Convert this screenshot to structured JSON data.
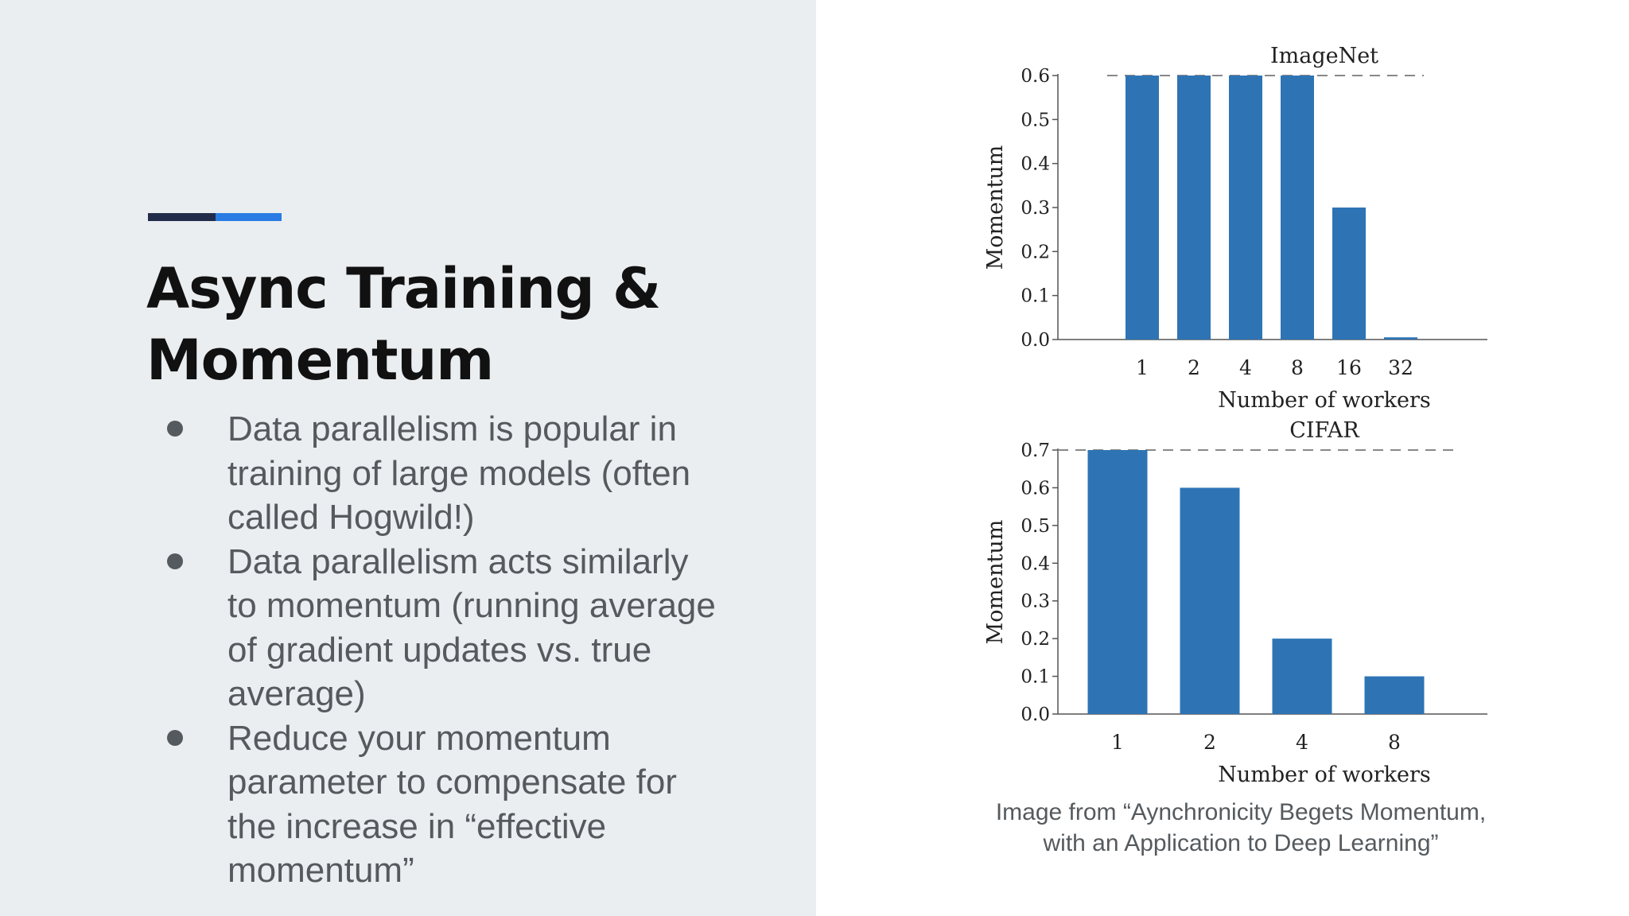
{
  "slide": {
    "title": "Async Training & Momentum",
    "bullets": [
      "Data parallelism is popular in training of large models (often called Hogwild!)",
      "Data parallelism acts similarly to momentum (running average of gradient updates vs. true average)",
      "Reduce your momentum parameter to compensate for the increase in “effective momentum”"
    ],
    "caption": "Image from “Aynchronicity Begets Momentum, with an Application to Deep Learning”"
  },
  "colors": {
    "panel_bg": "#eaeef0",
    "title_text": "#111111",
    "body_text": "#555a5e",
    "bullet_dot": "#555a5e",
    "accent_dark": "#232b4a",
    "accent_blue": "#2a7be4",
    "bar_fill": "#2e74b5",
    "axis": "#555555",
    "dash_line": "#888888"
  },
  "chart_data": [
    {
      "type": "bar",
      "title": "ImageNet",
      "xlabel": "Number of workers",
      "ylabel": "Momentum",
      "categories": [
        "1",
        "2",
        "4",
        "8",
        "16",
        "32"
      ],
      "values": [
        0.6,
        0.6,
        0.6,
        0.6,
        0.3,
        0.005
      ],
      "ylim": [
        0,
        0.6
      ],
      "yticks": [
        "0.0",
        "0.1",
        "0.2",
        "0.3",
        "0.4",
        "0.5",
        "0.6"
      ],
      "reference_line": 0.6,
      "grid": false
    },
    {
      "type": "bar",
      "title": "CIFAR",
      "xlabel": "Number of workers",
      "ylabel": "Momentum",
      "categories": [
        "1",
        "2",
        "4",
        "8"
      ],
      "values": [
        0.7,
        0.6,
        0.2,
        0.1
      ],
      "ylim": [
        0,
        0.7
      ],
      "yticks": [
        "0.0",
        "0.1",
        "0.2",
        "0.3",
        "0.4",
        "0.5",
        "0.6",
        "0.7"
      ],
      "reference_line": 0.7,
      "grid": false
    }
  ]
}
